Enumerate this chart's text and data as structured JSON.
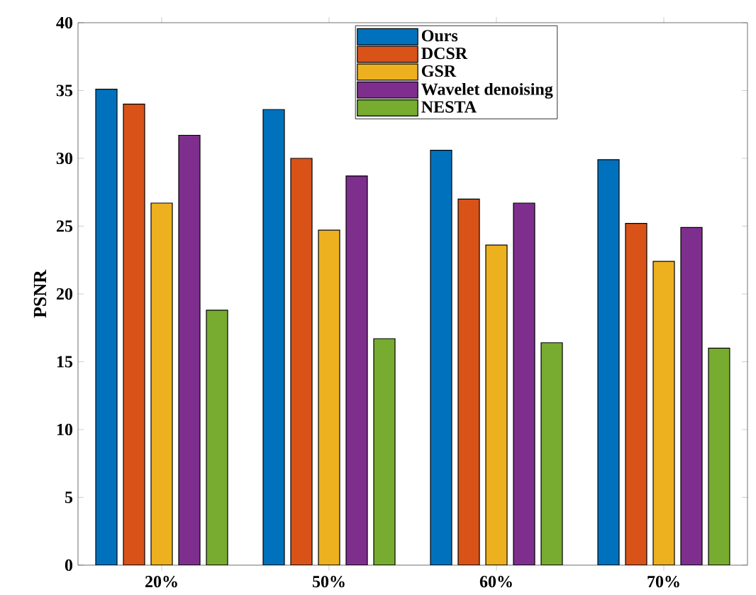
{
  "chart_data": {
    "type": "bar",
    "ylabel": "PSNR",
    "categories": [
      "20%",
      "50%",
      "60%",
      "70%"
    ],
    "series": [
      {
        "name": "Ours",
        "color": "#0072bd",
        "values": [
          35.1,
          33.6,
          30.6,
          29.9
        ]
      },
      {
        "name": "DCSR",
        "color": "#d95319",
        "values": [
          34.0,
          30.0,
          27.0,
          25.2
        ]
      },
      {
        "name": "GSR",
        "color": "#edb120",
        "values": [
          26.7,
          24.7,
          23.6,
          22.4
        ]
      },
      {
        "name": "Wavelet denoising",
        "color": "#7e2f8e",
        "values": [
          31.7,
          28.7,
          26.7,
          24.9
        ]
      },
      {
        "name": "NESTA",
        "color": "#77ac30",
        "values": [
          18.8,
          16.7,
          16.4,
          16.0
        ]
      }
    ],
    "ylim": [
      0,
      40
    ],
    "yticks": [
      0,
      5,
      10,
      15,
      20,
      25,
      30,
      35,
      40
    ],
    "legend": "top"
  }
}
